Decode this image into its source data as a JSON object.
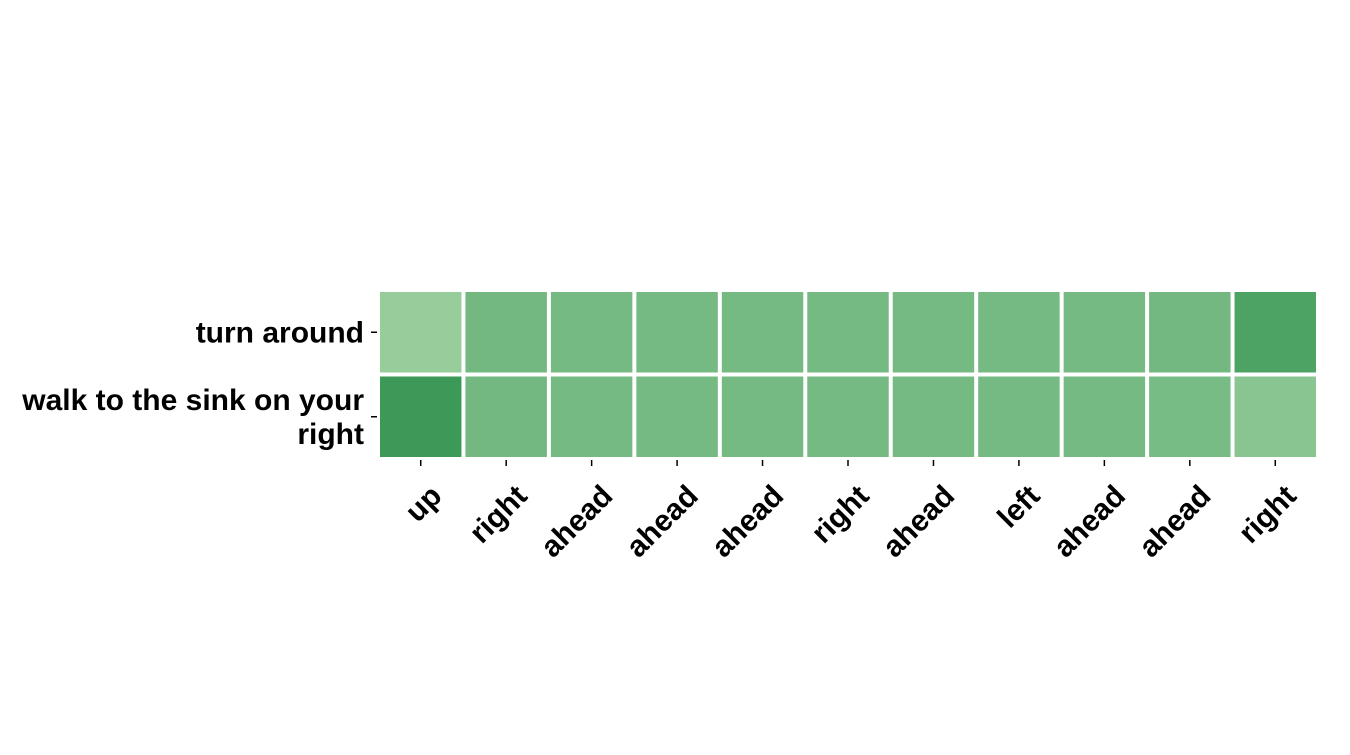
{
  "chart_data": {
    "type": "heatmap",
    "title": "",
    "xlabel": "",
    "ylabel": "",
    "x_categories": [
      "up",
      "right",
      "ahead",
      "ahead",
      "ahead",
      "right",
      "ahead",
      "left",
      "ahead",
      "ahead",
      "right"
    ],
    "y_categories": [
      "turn around",
      "walk to the sink on your right"
    ],
    "values": [
      [
        0.3,
        0.52,
        0.5,
        0.5,
        0.5,
        0.5,
        0.5,
        0.5,
        0.5,
        0.52,
        0.75
      ],
      [
        0.85,
        0.52,
        0.5,
        0.5,
        0.5,
        0.5,
        0.5,
        0.5,
        0.5,
        0.48,
        0.38
      ]
    ],
    "colorbar": false,
    "grid": false,
    "colors": {
      "low": "#c7e9c0",
      "high": "#238b45"
    }
  }
}
